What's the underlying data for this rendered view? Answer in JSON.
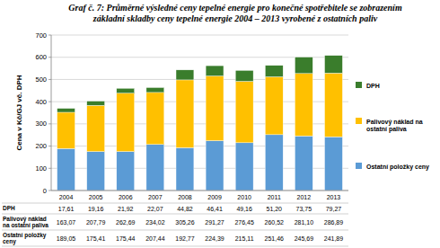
{
  "chart_data": {
    "type": "bar",
    "stacked": true,
    "grid": true,
    "legend": "right",
    "title": [
      "Graf č. 7: Průměrné výsledné ceny tepelné energie pro konečné spotřebitele se zobrazením",
      "základní skladby ceny tepelné energie 2004 – 2013 vyrobené z ostatních paliv"
    ],
    "y_label": "Cena v Kč/GJ vč. DPH",
    "categories": [
      "2004",
      "2005",
      "2006",
      "2007",
      "2008",
      "2009",
      "2010",
      "2011",
      "2012",
      "2013"
    ],
    "ylim": [
      0,
      700
    ],
    "yticks": [
      0,
      100,
      200,
      300,
      400,
      500,
      600,
      700
    ],
    "series": [
      {
        "name": "Ostatní položky ceny",
        "color": "#5b9bd5",
        "values": [
          189.05,
          175.41,
          175.44,
          207.44,
          192.77,
          224.39,
          215.11,
          251.46,
          245.69,
          241.89
        ],
        "value_labels": [
          "189,05",
          "175,41",
          "175,44",
          "207,44",
          "192,77",
          "224,39",
          "215,11",
          "251,46",
          "245,69",
          "241,89"
        ]
      },
      {
        "name": "Palivový náklad na ostatní paliva",
        "color": "#ffc000",
        "values": [
          163.07,
          207.79,
          262.69,
          234.02,
          305.26,
          291.27,
          276.45,
          260.52,
          281.1,
          286.89
        ],
        "value_labels": [
          "163,07",
          "207,79",
          "262,69",
          "234,02",
          "305,26",
          "291,27",
          "276,45",
          "260,52",
          "281,10",
          "286,89"
        ]
      },
      {
        "name": "DPH",
        "color": "#3a7d2c",
        "values": [
          17.61,
          19.16,
          21.92,
          22.07,
          44.82,
          46.41,
          49.16,
          51.2,
          73.75,
          79.27
        ],
        "value_labels": [
          "17,61",
          "19,16",
          "21,92",
          "22,07",
          "44,82",
          "46,41",
          "49,16",
          "51,20",
          "73,75",
          "79,27"
        ]
      }
    ]
  }
}
